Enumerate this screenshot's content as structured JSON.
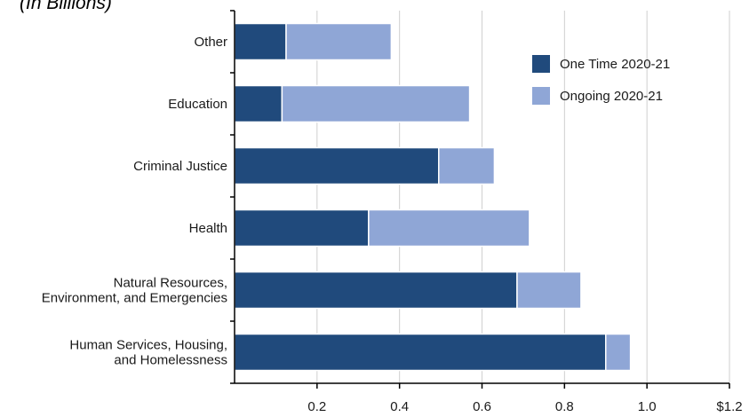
{
  "chart_data": {
    "type": "bar",
    "orientation": "horizontal",
    "stacked": true,
    "subtitle": "(In Billions)",
    "categories": [
      [
        "Other"
      ],
      [
        "Education"
      ],
      [
        "Criminal Justice"
      ],
      [
        "Health"
      ],
      [
        "Natural Resources,",
        "Environment, and Emergencies"
      ],
      [
        "Human Services, Housing,",
        "and Homelessness"
      ]
    ],
    "series": [
      {
        "name": "One Time 2020-21",
        "color": "#204a7c",
        "values": [
          0.125,
          0.115,
          0.495,
          0.325,
          0.685,
          0.9
        ]
      },
      {
        "name": "Ongoing 2020-21",
        "color": "#8fa6d6",
        "values": [
          0.255,
          0.455,
          0.135,
          0.39,
          0.155,
          0.06
        ]
      }
    ],
    "xlim": [
      0,
      1.2
    ],
    "xticks": [
      {
        "value": 0.2,
        "label": "0.2"
      },
      {
        "value": 0.4,
        "label": "0.4"
      },
      {
        "value": 0.6,
        "label": "0.6"
      },
      {
        "value": 0.8,
        "label": "0.8"
      },
      {
        "value": 1.0,
        "label": "1.0"
      },
      {
        "value": 1.2,
        "label": "$1.2"
      }
    ],
    "grid": "vertical",
    "legend": "top-right"
  }
}
